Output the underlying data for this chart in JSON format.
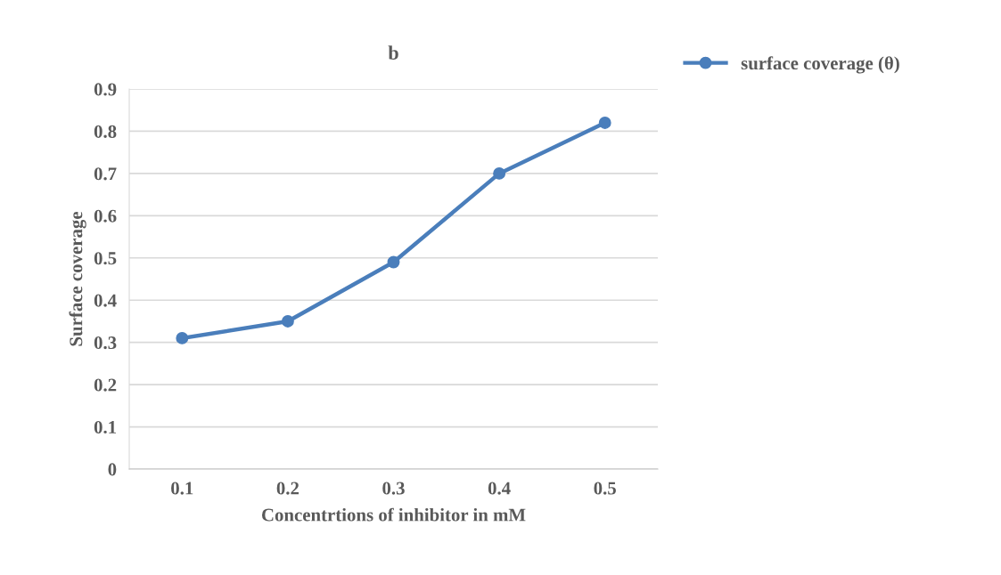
{
  "chart_data": {
    "type": "line",
    "title": "b",
    "xlabel": "Concentrtions of inhibitor in mM",
    "ylabel": "Surface coverage",
    "categories": [
      "0.1",
      "0.2",
      "0.3",
      "0.4",
      "0.5"
    ],
    "series": [
      {
        "name": "surface coverage (θ)",
        "color": "#4a7ebb",
        "values": [
          0.31,
          0.35,
          0.49,
          0.7,
          0.82
        ]
      }
    ],
    "ylim": [
      0,
      0.9
    ],
    "yticks": [
      0,
      0.1,
      0.2,
      0.3,
      0.4,
      0.5,
      0.6,
      0.7,
      0.8,
      0.9
    ],
    "grid": "y",
    "legend": "top right",
    "marker": "circle",
    "line_style": "solid"
  }
}
